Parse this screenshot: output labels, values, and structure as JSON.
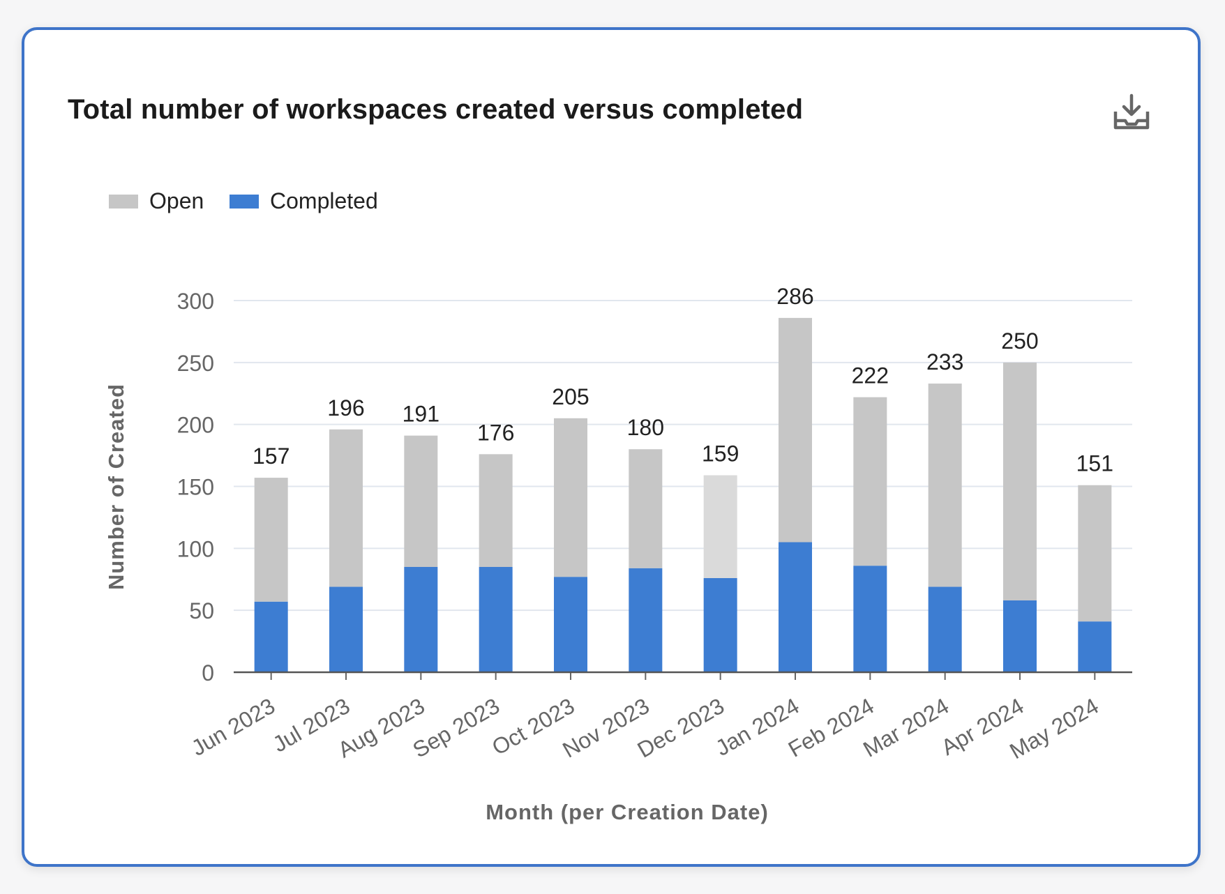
{
  "card": {
    "title": "Total number of workspaces created versus completed",
    "download_icon": "download-icon"
  },
  "chart_data": {
    "type": "bar",
    "stacked": true,
    "categories": [
      "Jun 2023",
      "Jul 2023",
      "Aug 2023",
      "Sep 2023",
      "Oct 2023",
      "Nov 2023",
      "Dec 2023",
      "Jan 2024",
      "Feb 2024",
      "Mar 2024",
      "Apr 2024",
      "May 2024"
    ],
    "series": [
      {
        "name": "Completed",
        "color": "#3d7dd2",
        "values": [
          57,
          69,
          85,
          85,
          77,
          84,
          76,
          105,
          86,
          69,
          58,
          41
        ]
      },
      {
        "name": "Open",
        "color": "#c6c6c6",
        "values": [
          100,
          127,
          106,
          91,
          128,
          96,
          83,
          181,
          136,
          164,
          192,
          110
        ]
      }
    ],
    "totals": [
      157,
      196,
      191,
      176,
      205,
      180,
      159,
      286,
      222,
      233,
      250,
      151
    ],
    "highlight_index": 6,
    "highlight_open_color": "#dadada",
    "xlabel": "Month (per Creation Date)",
    "ylabel": "Number of Created",
    "ylim": [
      0,
      300
    ],
    "yticks": [
      0,
      50,
      100,
      150,
      200,
      250,
      300
    ],
    "grid": true,
    "legend": {
      "position": "top-left",
      "order": [
        "Open",
        "Completed"
      ]
    }
  }
}
